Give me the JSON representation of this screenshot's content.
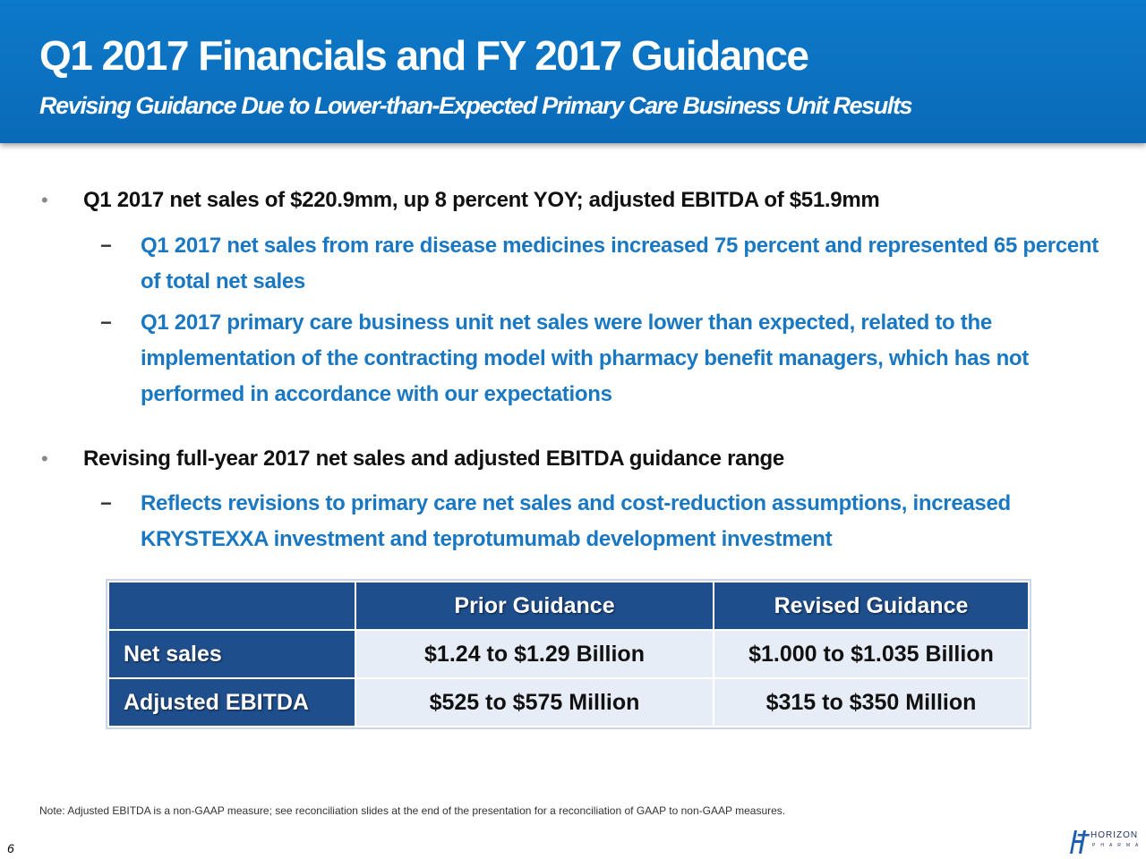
{
  "header": {
    "title": "Q1 2017 Financials and FY 2017 Guidance",
    "subtitle": "Revising Guidance Due to Lower-than-Expected Primary Care Business Unit Results"
  },
  "bullets": [
    {
      "text": "Q1 2017 net sales of $220.9mm, up 8 percent YOY; adjusted EBITDA of $51.9mm",
      "subs": [
        "Q1 2017 net sales from rare disease medicines increased 75 percent and represented 65 percent of total net sales",
        "Q1 2017 primary care business unit net sales were lower than expected, related to the implementation of the contracting model with pharmacy benefit managers, which has not performed in accordance with our expectations"
      ]
    },
    {
      "text": "Revising full-year 2017 net sales and adjusted EBITDA guidance range",
      "subs": [
        "Reflects revisions to primary care net sales and cost-reduction assumptions, increased KRYSTEXXA investment and teprotumumab development investment"
      ]
    }
  ],
  "bullet_symbol": "•",
  "dash_symbol": "−",
  "table": {
    "headers": [
      "",
      "Prior Guidance",
      "Revised Guidance"
    ],
    "rows": [
      {
        "label": "Net sales",
        "prior": "$1.24 to $1.29 Billion",
        "revised": "$1.000 to $1.035 Billion"
      },
      {
        "label": "Adjusted EBITDA",
        "prior": "$525 to $575 Million",
        "revised": "$315 to $350 Million"
      }
    ]
  },
  "footer": {
    "note": "Note:  Adjusted EBITDA is a non-GAAP measure; see reconciliation slides at the end of the presentation for a reconciliation of GAAP to non-GAAP measures.",
    "page_number": "6",
    "logo_text": "HORIZON",
    "logo_subtext": "PHARMA"
  },
  "colors": {
    "header_blue": "#0a6fbf",
    "sub_bullet_blue": "#1a78c2",
    "table_dark": "#1f4e8c",
    "table_light": "#e6edf6"
  }
}
